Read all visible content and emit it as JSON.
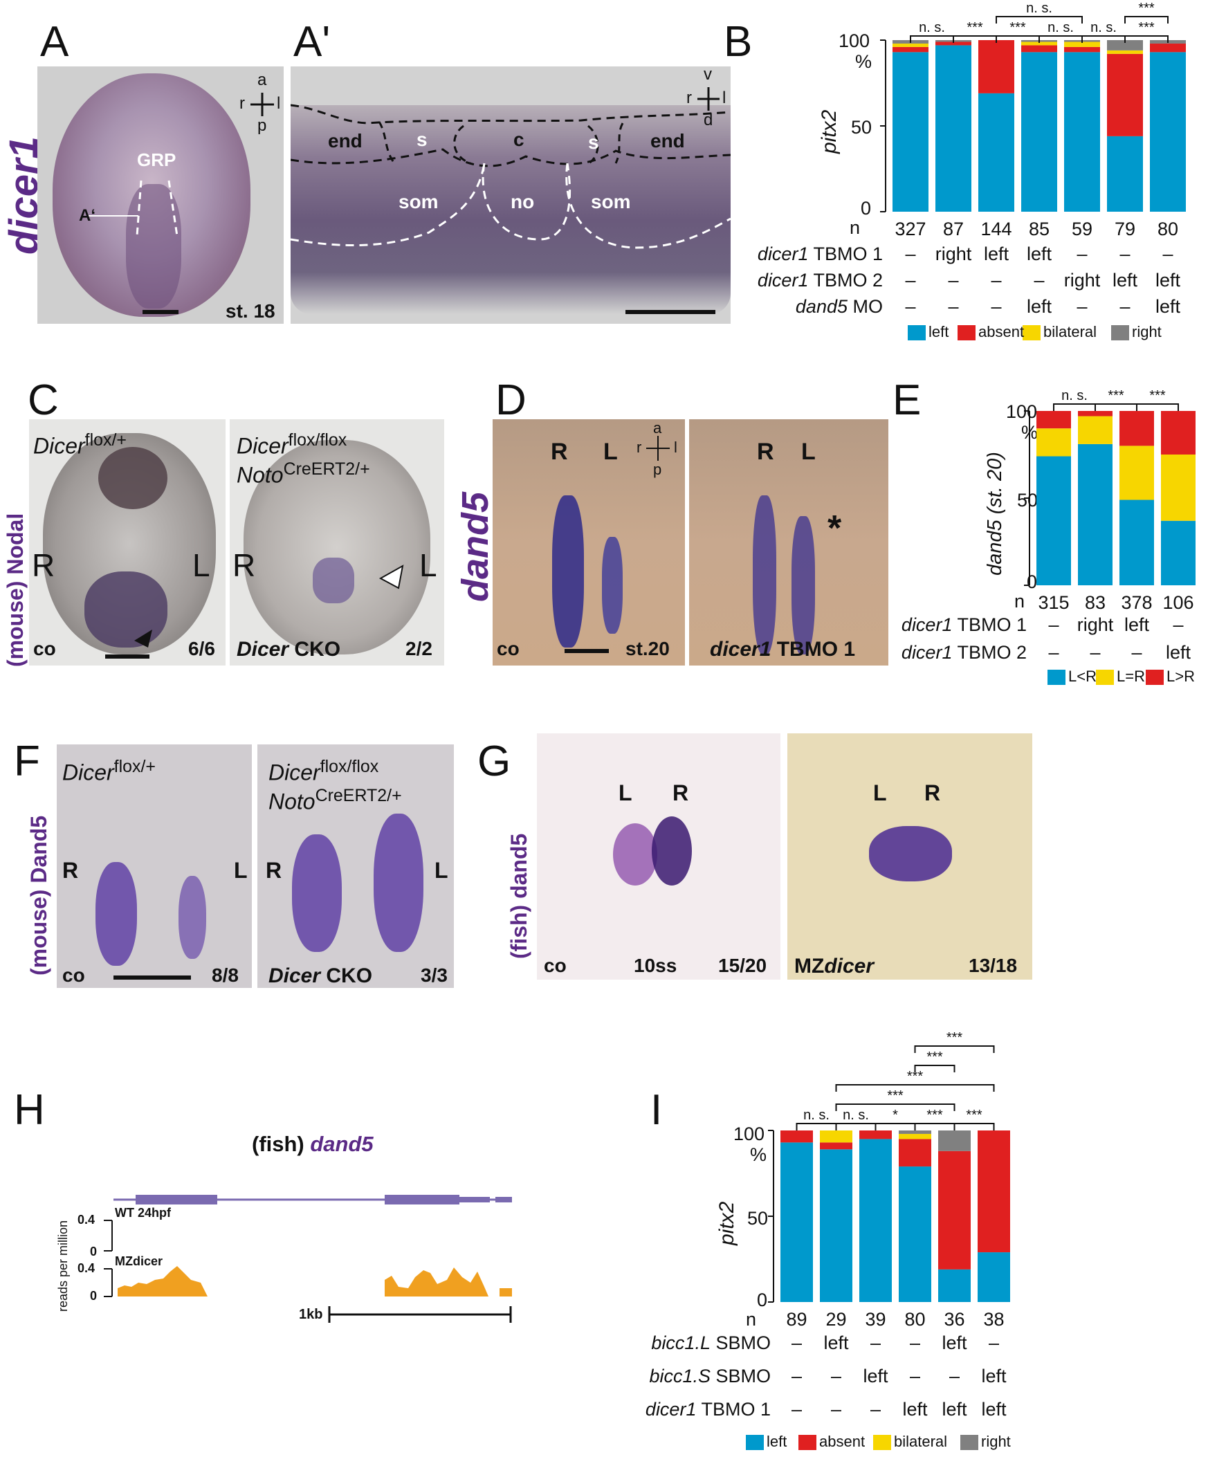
{
  "colors": {
    "left": "#0099cc",
    "absent": "#e02020",
    "bilateral": "#f7d600",
    "right": "#808080",
    "purple": "#5b2a86",
    "orange": "#f0a020",
    "gene": "#7a6ab0"
  },
  "panelA": {
    "letter": "A",
    "gene": "dicer1",
    "grp": "GRP",
    "section_marker": "A‘",
    "stage": "st. 18",
    "axis": {
      "a": "a",
      "p": "p",
      "r": "r",
      "l": "l"
    }
  },
  "panelA2": {
    "letter": "A'",
    "axis": {
      "v": "v",
      "d": "d",
      "r": "r",
      "l": "l"
    },
    "regions": {
      "end1": "end",
      "s1": "s",
      "c": "c",
      "s2": "s",
      "end2": "end",
      "som1": "som",
      "no": "no",
      "som2": "som"
    }
  },
  "panelB": {
    "letter": "B",
    "ylabel": "pitx2",
    "y100": "100",
    "pct": "%",
    "y50": "50",
    "y0": "0",
    "n_prefix": "n",
    "rows": [
      {
        "label": "dicer1 TBMO 1",
        "vals": [
          "–",
          "right",
          "left",
          "left",
          "–",
          "–",
          "–"
        ]
      },
      {
        "label": "dicer1 TBMO 2",
        "vals": [
          "–",
          "–",
          "–",
          "–",
          "right",
          "left",
          "left"
        ]
      },
      {
        "label": "dand5 MO",
        "vals": [
          "–",
          "–",
          "–",
          "left",
          "–",
          "–",
          "left"
        ]
      }
    ],
    "sig": [
      "n. s.",
      "***",
      "***",
      "n. s.",
      "n. s.",
      "***",
      "n. s.",
      "***"
    ],
    "legend": [
      "left",
      "absent",
      "bilateral",
      "right"
    ]
  },
  "panelC": {
    "letter": "C",
    "label": "(mouse) Nodal",
    "left": {
      "gen_base": "Dicer",
      "gen_sup": "flox/+",
      "R": "R",
      "L": "L",
      "co": "co",
      "count": "6/6"
    },
    "right": {
      "gen_base": "Dicer",
      "gen_sup": "flox/flox",
      "gen2_base": "Noto",
      "gen2_sup": "CreERT2/+",
      "R": "R",
      "L": "L",
      "cko1": "Dicer",
      "cko2": " CKO",
      "count": "2/2"
    }
  },
  "panelD": {
    "letter": "D",
    "gene": "dand5",
    "R": "R",
    "L": "L",
    "co": "co",
    "stage": "st.20",
    "axis": {
      "a": "a",
      "p": "p",
      "r": "r",
      "l": "l"
    },
    "right_R": "R",
    "right_L": "L",
    "star": "*",
    "tbmo1": "dicer1",
    "tbmo2": " TBMO 1"
  },
  "panelE": {
    "letter": "E",
    "ylabel": "dand5 (st. 20)",
    "y100": "100",
    "pct": "%",
    "y50": "50",
    "y0": "0",
    "n_prefix": "n",
    "rows": [
      {
        "label": "dicer1 TBMO 1",
        "vals": [
          "–",
          "right",
          "left",
          "–"
        ]
      },
      {
        "label": "dicer1 TBMO 2",
        "vals": [
          "–",
          "–",
          "–",
          "left"
        ]
      }
    ],
    "sig": [
      "n. s.",
      "***",
      "***"
    ],
    "legend": [
      "L<R",
      "L=R",
      "L>R"
    ]
  },
  "panelF": {
    "letter": "F",
    "label": "(mouse) Dand5",
    "left": {
      "gen_base": "Dicer",
      "gen_sup": "flox/+",
      "R": "R",
      "L": "L",
      "co": "co",
      "count": "8/8"
    },
    "right": {
      "gen_base": "Dicer",
      "gen_sup": "flox/flox",
      "gen2_base": "Noto",
      "gen2_sup": "CreERT2/+",
      "R": "R",
      "L": "L",
      "cko1": "Dicer",
      "cko2": " CKO",
      "count": "3/3"
    }
  },
  "panelG": {
    "letter": "G",
    "label": "(fish) dand5",
    "left": {
      "L": "L",
      "R": "R",
      "co": "co",
      "stage": "10ss",
      "count": "15/20"
    },
    "right": {
      "L": "L",
      "R": "R",
      "mz1": "MZ",
      "mz2": "dicer",
      "count": "13/18"
    }
  },
  "panelH": {
    "letter": "H",
    "title1": "(fish) ",
    "title2": "dand5",
    "ylabel": "reads per million",
    "track1": "WT 24hpf",
    "track2": "MZdicer",
    "t04a": "0.4",
    "t0a": "0",
    "t04b": "0.4",
    "t0b": "0",
    "scale": "1kb"
  },
  "panelI": {
    "letter": "I",
    "ylabel": "pitx2",
    "y100": "100",
    "pct": "%",
    "y50": "50",
    "y0": "0",
    "n_prefix": "n",
    "rows": [
      {
        "label": "bicc1.L SBMO",
        "vals": [
          "–",
          "left",
          "–",
          "–",
          "left",
          "–"
        ]
      },
      {
        "label": "bicc1.S SBMO",
        "vals": [
          "–",
          "–",
          "left",
          "–",
          "–",
          "left"
        ]
      },
      {
        "label": "dicer1 TBMO 1",
        "vals": [
          "–",
          "–",
          "–",
          "left",
          "left",
          "left"
        ]
      }
    ],
    "sig": [
      "n. s.",
      "n. s.",
      "*",
      "***",
      "***",
      "***",
      "***",
      "***",
      "***"
    ],
    "legend": [
      "left",
      "absent",
      "bilateral",
      "right"
    ]
  },
  "chart_data": [
    {
      "panel": "B",
      "type": "bar",
      "stacked": true,
      "ylabel": "pitx2",
      "ylim": [
        0,
        100
      ],
      "categories": [
        "327",
        "87",
        "144",
        "85",
        "59",
        "79",
        "80"
      ],
      "series": [
        {
          "name": "left",
          "values": [
            93,
            97,
            69,
            93,
            93,
            44,
            93
          ]
        },
        {
          "name": "absent",
          "values": [
            3,
            2,
            31,
            4,
            3,
            48,
            5
          ]
        },
        {
          "name": "bilateral",
          "values": [
            2,
            0,
            0,
            2,
            3,
            2,
            0
          ]
        },
        {
          "name": "right",
          "values": [
            2,
            1,
            0,
            1,
            1,
            6,
            2
          ]
        }
      ]
    },
    {
      "panel": "E",
      "type": "bar",
      "stacked": true,
      "ylabel": "dand5 (st. 20)",
      "ylim": [
        0,
        100
      ],
      "categories": [
        "315",
        "83",
        "378",
        "106"
      ],
      "series": [
        {
          "name": "L<R",
          "values": [
            74,
            81,
            49,
            37
          ]
        },
        {
          "name": "L=R",
          "values": [
            16,
            16,
            31,
            38
          ]
        },
        {
          "name": "L>R",
          "values": [
            10,
            3,
            20,
            25
          ]
        }
      ]
    },
    {
      "panel": "I",
      "type": "bar",
      "stacked": true,
      "ylabel": "pitx2",
      "ylim": [
        0,
        100
      ],
      "categories": [
        "89",
        "29",
        "39",
        "80",
        "36",
        "38"
      ],
      "series": [
        {
          "name": "left",
          "values": [
            93,
            89,
            95,
            79,
            19,
            29
          ]
        },
        {
          "name": "absent",
          "values": [
            7,
            4,
            5,
            16,
            69,
            71
          ]
        },
        {
          "name": "bilateral",
          "values": [
            0,
            7,
            0,
            3,
            0,
            0
          ]
        },
        {
          "name": "right",
          "values": [
            0,
            0,
            0,
            2,
            12,
            0
          ]
        }
      ]
    }
  ]
}
